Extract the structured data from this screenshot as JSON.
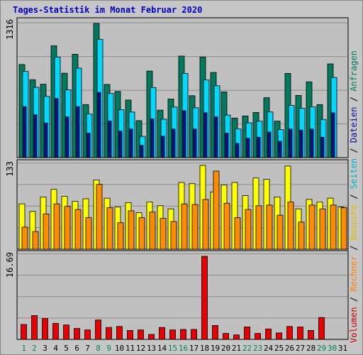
{
  "title": "Tages-Statistik im Monat Februar 2020",
  "right_legend": [
    {
      "text": "Volumen",
      "color": "#cc0000"
    },
    {
      "text": " / ",
      "color": "#000000"
    },
    {
      "text": "Rechner",
      "color": "#ff8000"
    },
    {
      "text": " / ",
      "color": "#000000"
    },
    {
      "text": "Besuche",
      "color": "#e0c000"
    },
    {
      "text": " / ",
      "color": "#000000"
    },
    {
      "text": "Seiten",
      "color": "#00b0d0"
    },
    {
      "text": " / ",
      "color": "#000000"
    },
    {
      "text": "Dateien",
      "color": "#1010a0"
    },
    {
      "text": " / ",
      "color": "#000000"
    },
    {
      "text": "Anfragen",
      "color": "#008060"
    }
  ],
  "chart_data": [
    {
      "type": "bar",
      "panel": "top",
      "y_tick_label": "1316",
      "ylim": [
        0,
        1316
      ],
      "categories": [
        "1",
        "2",
        "3",
        "4",
        "5",
        "6",
        "7",
        "8",
        "9",
        "10",
        "11",
        "12",
        "13",
        "14",
        "15",
        "16",
        "17",
        "18",
        "19",
        "20",
        "21",
        "22",
        "23",
        "24",
        "25",
        "26",
        "27",
        "28",
        "29",
        "30",
        "31"
      ],
      "series": [
        {
          "name": "Anfragen",
          "color": "#007a5e",
          "values": [
            913,
            764,
            720,
            1097,
            828,
            1014,
            520,
            1316,
            718,
            649,
            565,
            363,
            849,
            466,
            575,
            996,
            607,
            987,
            835,
            645,
            388,
            409,
            443,
            588,
            358,
            826,
            610,
            743,
            520,
            919,
            null
          ]
        },
        {
          "name": "Seiten",
          "color": "#00d8ff",
          "values": [
            845,
            689,
            600,
            986,
            665,
            877,
            429,
            1159,
            629,
            469,
            447,
            208,
            687,
            377,
            496,
            826,
            489,
            762,
            705,
            417,
            281,
            341,
            357,
            448,
            276,
            512,
            483,
            497,
            374,
            786,
            null
          ]
        },
        {
          "name": "Dateien",
          "color": "#10109a",
          "values": [
            500,
            420,
            340,
            580,
            400,
            500,
            240,
            640,
            360,
            260,
            280,
            120,
            380,
            210,
            280,
            460,
            280,
            440,
            400,
            240,
            140,
            190,
            200,
            250,
            160,
            280,
            270,
            280,
            200,
            440,
            null
          ]
        }
      ]
    },
    {
      "type": "bar",
      "panel": "middle",
      "y_tick_label": "133",
      "ylim": [
        0,
        133
      ],
      "categories": [
        "1",
        "2",
        "3",
        "4",
        "5",
        "6",
        "7",
        "8",
        "9",
        "10",
        "11",
        "12",
        "13",
        "14",
        "15",
        "16",
        "17",
        "18",
        "19",
        "20",
        "21",
        "22",
        "23",
        "24",
        "25",
        "26",
        "27",
        "28",
        "29",
        "30",
        "31"
      ],
      "series": [
        {
          "name": "Besuche",
          "color": "#ffff00",
          "values": [
            72,
            60,
            83,
            95,
            84,
            76,
            80,
            110,
            81,
            67,
            74,
            58,
            75,
            69,
            64,
            106,
            104,
            133,
            91,
            102,
            106,
            85,
            113,
            111,
            83,
            132,
            64,
            79,
            75,
            81,
            67
          ]
        },
        {
          "name": "Rechner",
          "color": "#ff8c00",
          "values": [
            35,
            28,
            56,
            72,
            68,
            63,
            50,
            103,
            66,
            42,
            61,
            50,
            59,
            49,
            44,
            72,
            71,
            79,
            124,
            73,
            50,
            63,
            69,
            70,
            54,
            75,
            43,
            70,
            64,
            70,
            66
          ]
        }
      ]
    },
    {
      "type": "bar",
      "panel": "bottom",
      "y_tick_label": "16.69",
      "ylim": [
        0,
        16.69
      ],
      "categories": [
        "1",
        "2",
        "3",
        "4",
        "5",
        "6",
        "7",
        "8",
        "9",
        "10",
        "11",
        "12",
        "13",
        "14",
        "15",
        "16",
        "17",
        "18",
        "19",
        "20",
        "21",
        "22",
        "23",
        "24",
        "25",
        "26",
        "27",
        "28",
        "29",
        "30",
        "31"
      ],
      "series": [
        {
          "name": "Volumen",
          "color": "#e80000",
          "values": [
            3.0,
            4.8,
            4.2,
            3.2,
            2.9,
            2.2,
            1.9,
            3.9,
            2.4,
            2.6,
            1.8,
            1.9,
            1.0,
            2.4,
            1.9,
            2.0,
            2.0,
            16.69,
            2.8,
            1.2,
            0.9,
            2.5,
            1.2,
            2.1,
            1.3,
            2.6,
            2.5,
            1.8,
            4.4,
            null,
            null
          ]
        }
      ]
    }
  ],
  "x_axis": {
    "labels": [
      "1",
      "2",
      "3",
      "4",
      "5",
      "6",
      "7",
      "8",
      "9",
      "10",
      "11",
      "12",
      "13",
      "14",
      "15",
      "16",
      "17",
      "18",
      "19",
      "20",
      "21",
      "22",
      "23",
      "24",
      "25",
      "26",
      "27",
      "28",
      "29",
      "30",
      "31"
    ],
    "highlight": [
      "1",
      "2",
      "8",
      "9",
      "15",
      "16",
      "22",
      "23",
      "29",
      "30"
    ],
    "highlight_color": "#008060",
    "normal_color": "#000000"
  }
}
